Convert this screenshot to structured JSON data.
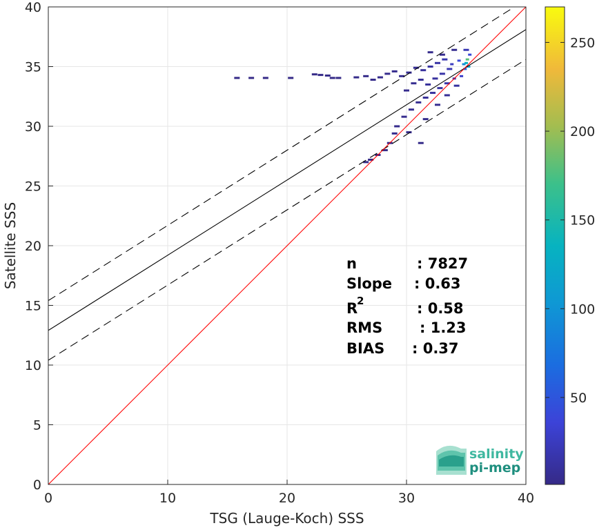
{
  "chart_data": {
    "type": "heatmap",
    "title": "",
    "xlabel": "TSG (Lauge-Koch) SSS",
    "ylabel": "Satellite SSS",
    "xlim": [
      0,
      40
    ],
    "ylim": [
      0,
      40
    ],
    "xticks": [
      "0",
      "10",
      "20",
      "30",
      "40"
    ],
    "yticks": [
      "0",
      "5",
      "10",
      "15",
      "20",
      "25",
      "30",
      "35",
      "40"
    ],
    "grid": true,
    "reference_lines": {
      "identity": {
        "slope": 1,
        "intercept": 0,
        "color": "#ff0000"
      },
      "fit": {
        "slope": 0.63,
        "intercept": 12.9,
        "color": "#000000"
      },
      "fit_upper": {
        "slope": 0.63,
        "intercept": 15.4,
        "style": "dashed"
      },
      "fit_lower": {
        "slope": 0.63,
        "intercept": 10.4,
        "style": "dashed"
      }
    },
    "density_points": [
      {
        "x": 15.8,
        "y": 34.05,
        "c": 1
      },
      {
        "x": 17.0,
        "y": 34.05,
        "c": 1
      },
      {
        "x": 18.2,
        "y": 34.05,
        "c": 1
      },
      {
        "x": 20.3,
        "y": 34.05,
        "c": 1
      },
      {
        "x": 22.3,
        "y": 34.35,
        "c": 1
      },
      {
        "x": 22.8,
        "y": 34.3,
        "c": 1
      },
      {
        "x": 23.4,
        "y": 34.25,
        "c": 2
      },
      {
        "x": 23.8,
        "y": 34.05,
        "c": 1
      },
      {
        "x": 24.3,
        "y": 34.05,
        "c": 1
      },
      {
        "x": 25.8,
        "y": 34.1,
        "c": 2
      },
      {
        "x": 26.6,
        "y": 34.2,
        "c": 2
      },
      {
        "x": 27.2,
        "y": 33.9,
        "c": 2
      },
      {
        "x": 27.8,
        "y": 34.1,
        "c": 3
      },
      {
        "x": 28.4,
        "y": 34.4,
        "c": 3
      },
      {
        "x": 29.0,
        "y": 34.6,
        "c": 4
      },
      {
        "x": 29.6,
        "y": 34.2,
        "c": 5
      },
      {
        "x": 30.2,
        "y": 34.5,
        "c": 6
      },
      {
        "x": 30.8,
        "y": 34.9,
        "c": 8
      },
      {
        "x": 31.4,
        "y": 34.7,
        "c": 10
      },
      {
        "x": 32.0,
        "y": 35.0,
        "c": 12
      },
      {
        "x": 32.6,
        "y": 35.3,
        "c": 14
      },
      {
        "x": 33.2,
        "y": 35.6,
        "c": 18
      },
      {
        "x": 33.8,
        "y": 35.2,
        "c": 25
      },
      {
        "x": 34.4,
        "y": 35.5,
        "c": 40
      },
      {
        "x": 34.8,
        "y": 35.2,
        "c": 90
      },
      {
        "x": 35.0,
        "y": 35.3,
        "c": 130
      },
      {
        "x": 35.1,
        "y": 35.6,
        "c": 180
      },
      {
        "x": 35.2,
        "y": 35.0,
        "c": 110
      },
      {
        "x": 34.9,
        "y": 34.8,
        "c": 60
      },
      {
        "x": 35.3,
        "y": 36.0,
        "c": 40
      },
      {
        "x": 35.0,
        "y": 36.4,
        "c": 20
      },
      {
        "x": 34.6,
        "y": 34.2,
        "c": 30
      },
      {
        "x": 34.0,
        "y": 34.0,
        "c": 22
      },
      {
        "x": 33.4,
        "y": 33.6,
        "c": 16
      },
      {
        "x": 32.8,
        "y": 33.2,
        "c": 12
      },
      {
        "x": 32.2,
        "y": 32.8,
        "c": 10
      },
      {
        "x": 31.6,
        "y": 32.4,
        "c": 8
      },
      {
        "x": 31.0,
        "y": 32.0,
        "c": 6
      },
      {
        "x": 30.4,
        "y": 31.4,
        "c": 5
      },
      {
        "x": 29.8,
        "y": 30.8,
        "c": 4
      },
      {
        "x": 29.2,
        "y": 30.0,
        "c": 3
      },
      {
        "x": 29.0,
        "y": 29.4,
        "c": 3
      },
      {
        "x": 28.6,
        "y": 28.6,
        "c": 3
      },
      {
        "x": 28.2,
        "y": 28.0,
        "c": 2
      },
      {
        "x": 27.6,
        "y": 27.6,
        "c": 2
      },
      {
        "x": 27.0,
        "y": 27.2,
        "c": 2
      },
      {
        "x": 26.6,
        "y": 27.0,
        "c": 2
      },
      {
        "x": 30.0,
        "y": 33.0,
        "c": 4
      },
      {
        "x": 30.6,
        "y": 33.6,
        "c": 5
      },
      {
        "x": 31.2,
        "y": 33.9,
        "c": 7
      },
      {
        "x": 31.8,
        "y": 33.5,
        "c": 9
      },
      {
        "x": 32.4,
        "y": 34.0,
        "c": 11
      },
      {
        "x": 33.0,
        "y": 34.4,
        "c": 15
      },
      {
        "x": 33.6,
        "y": 34.8,
        "c": 19
      },
      {
        "x": 32.0,
        "y": 36.2,
        "c": 3
      },
      {
        "x": 33.0,
        "y": 36.0,
        "c": 4
      },
      {
        "x": 34.0,
        "y": 36.4,
        "c": 5
      },
      {
        "x": 30.2,
        "y": 29.5,
        "c": 3
      },
      {
        "x": 31.2,
        "y": 28.6,
        "c": 2
      },
      {
        "x": 31.6,
        "y": 30.6,
        "c": 3
      },
      {
        "x": 32.6,
        "y": 31.8,
        "c": 5
      },
      {
        "x": 33.4,
        "y": 32.6,
        "c": 7
      },
      {
        "x": 34.2,
        "y": 33.4,
        "c": 12
      }
    ],
    "colorbar": {
      "range": [
        1,
        270
      ],
      "ticks": [
        "50",
        "100",
        "150",
        "200",
        "250"
      ],
      "colormap": "parula"
    }
  },
  "stats": {
    "n_label": "n",
    "n_value": ": 7827",
    "slope_label": "Slope",
    "slope_value": ": 0.63",
    "r2_label": "R",
    "r2_sup": "2",
    "r2_value": ": 0.58",
    "rms_label": "RMS",
    "rms_value": ": 1.23",
    "bias_label": "BIAS",
    "bias_value": ": 0.37"
  },
  "logo": {
    "line1": "salinity",
    "line2": "pi-mep",
    "color1": "#3fb8a0",
    "color2": "#1f8f7f"
  }
}
